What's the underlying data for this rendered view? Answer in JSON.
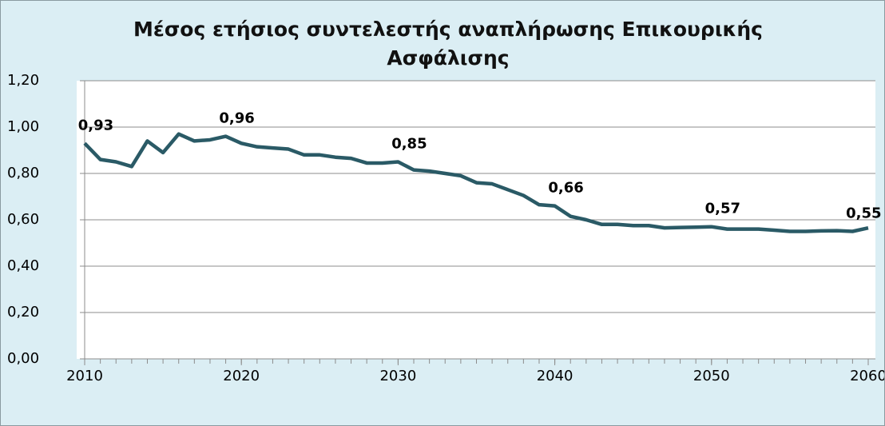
{
  "chart_data": {
    "type": "line",
    "title": "Μέσος ετήσιος συντελεστής αναπλήρωσης  Επικουρικής Ασφάλισης",
    "x": [
      2010,
      2011,
      2012,
      2013,
      2014,
      2015,
      2016,
      2017,
      2018,
      2019,
      2020,
      2021,
      2022,
      2023,
      2024,
      2025,
      2026,
      2027,
      2028,
      2029,
      2030,
      2031,
      2032,
      2033,
      2034,
      2035,
      2036,
      2037,
      2038,
      2039,
      2040,
      2041,
      2042,
      2043,
      2044,
      2045,
      2046,
      2047,
      2048,
      2049,
      2050,
      2051,
      2052,
      2053,
      2054,
      2055,
      2056,
      2057,
      2058,
      2059,
      2060
    ],
    "series": [
      {
        "color": "#2a5a66",
        "values": [
          0.93,
          0.86,
          0.85,
          0.83,
          0.94,
          0.89,
          0.97,
          0.94,
          0.945,
          0.96,
          0.93,
          0.915,
          0.91,
          0.905,
          0.88,
          0.88,
          0.87,
          0.865,
          0.845,
          0.845,
          0.85,
          0.815,
          0.81,
          0.8,
          0.79,
          0.76,
          0.755,
          0.73,
          0.705,
          0.665,
          0.66,
          0.615,
          0.6,
          0.58,
          0.58,
          0.575,
          0.575,
          0.565,
          0.567,
          0.568,
          0.57,
          0.56,
          0.56,
          0.56,
          0.555,
          0.55,
          0.55,
          0.552,
          0.553,
          0.55,
          0.565
        ],
        "value_labels": [
          "0,93",
          null,
          null,
          null,
          null,
          null,
          null,
          null,
          null,
          "0,96",
          null,
          null,
          null,
          null,
          null,
          null,
          null,
          null,
          null,
          null,
          "0,85",
          null,
          null,
          null,
          null,
          null,
          null,
          null,
          null,
          null,
          "0,66",
          null,
          null,
          null,
          null,
          null,
          null,
          null,
          null,
          null,
          "0,57",
          null,
          null,
          null,
          null,
          null,
          null,
          null,
          null,
          "0,55",
          null
        ]
      }
    ],
    "xlim": [
      2010,
      2060
    ],
    "xticks": [
      2010,
      2020,
      2030,
      2040,
      2050,
      2060
    ],
    "ylim": [
      0,
      1.2
    ],
    "yticks": [
      {
        "value": 0,
        "label": "0,00"
      },
      {
        "value": 0.2,
        "label": "0,20"
      },
      {
        "value": 0.4,
        "label": "0,40"
      },
      {
        "value": 0.6,
        "label": "0,60"
      },
      {
        "value": 0.8,
        "label": "0,80"
      },
      {
        "value": 1.0,
        "label": "1,00"
      },
      {
        "value": 1.2,
        "label": "1,20"
      }
    ],
    "grid": true
  }
}
